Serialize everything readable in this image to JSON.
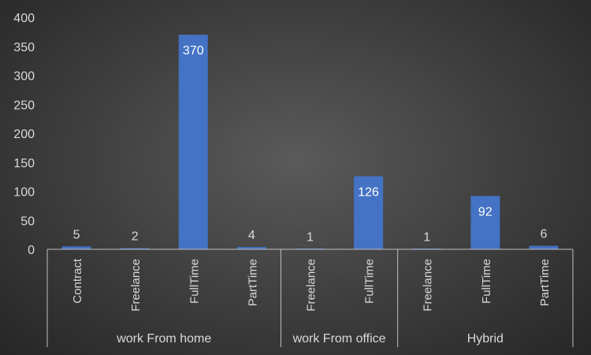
{
  "chart_data": {
    "type": "bar",
    "title": "",
    "xlabel": "",
    "ylabel": "",
    "ylim": [
      0,
      400
    ],
    "y_ticks": [
      0,
      50,
      100,
      150,
      200,
      250,
      300,
      350,
      400
    ],
    "grid": false,
    "legend": "none",
    "bar_color": "#4472c4",
    "groups": [
      {
        "name": "work From home",
        "categories": [
          "Contract",
          "Freelance",
          "FullTime",
          "PartTime"
        ],
        "values": [
          5,
          2,
          370,
          4
        ]
      },
      {
        "name": "work From office",
        "categories": [
          "Freelance",
          "FullTime"
        ],
        "values": [
          1,
          126
        ]
      },
      {
        "name": "Hybrid",
        "categories": [
          "Freelance",
          "FullTime",
          "PartTime"
        ],
        "values": [
          1,
          92,
          6
        ]
      }
    ]
  }
}
